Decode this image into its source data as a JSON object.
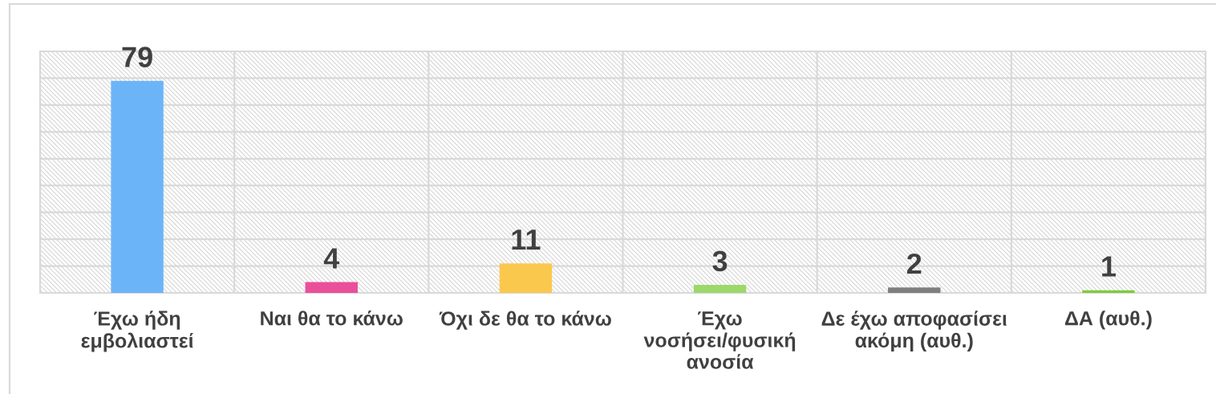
{
  "chart_data": {
    "type": "bar",
    "categories": [
      "Έχω ήδη εμβολιαστεί",
      "Ναι θα το κάνω",
      "Όχι δε θα το κάνω",
      "Έχω νοσήσει/φυσική ανοσία",
      "Δε έχω αποφασίσει ακόμη (αυθ.)",
      "ΔΑ (αυθ.)"
    ],
    "values": [
      79,
      4,
      11,
      3,
      2,
      1
    ],
    "colors": [
      "#6cb4f8",
      "#ea4f9a",
      "#fbc84e",
      "#9cd86a",
      "#7f7f7f",
      "#7ccc3c"
    ],
    "ylim": [
      0,
      90
    ],
    "yticks": [
      {
        "value": 0,
        "label": null
      },
      {
        "value": 10,
        "label": null
      },
      {
        "value": 20,
        "label": null
      },
      {
        "value": 30,
        "label": null
      },
      {
        "value": 40,
        "label": null
      },
      {
        "value": 50,
        "label": null
      },
      {
        "value": 60,
        "label": null
      },
      {
        "value": 70,
        "label": null
      },
      {
        "value": 80,
        "label": null
      },
      {
        "value": 90,
        "label": null
      }
    ],
    "grid": true,
    "data_labels": true,
    "tick_labels": "x"
  }
}
